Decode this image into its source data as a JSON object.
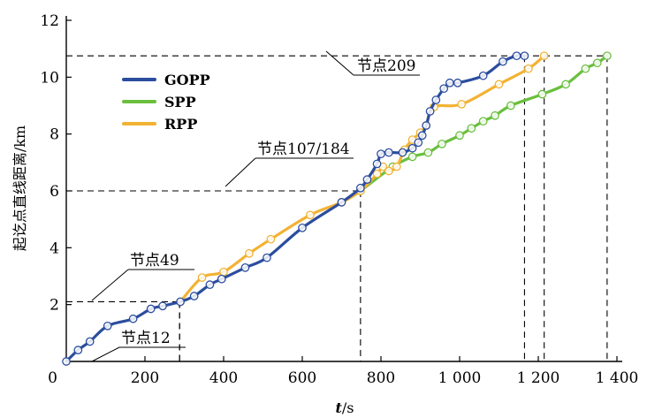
{
  "chart_data": {
    "type": "line",
    "xlabel": "t/s",
    "ylabel": "起讫点直线距离/km",
    "xlim": [
      0,
      1400
    ],
    "ylim": [
      0,
      12
    ],
    "x_ticks": [
      "0",
      "200",
      "400",
      "600",
      "800",
      "1 000",
      "1 200",
      "1 400"
    ],
    "y_ticks": [
      "0",
      "2",
      "4",
      "6",
      "8",
      "10",
      "12"
    ],
    "legend_position": "top-left",
    "grid": false,
    "series": [
      {
        "name": "GOPP",
        "color": "#2b4d9e",
        "points": [
          [
            0,
            0
          ],
          [
            30,
            0.4
          ],
          [
            60,
            0.7
          ],
          [
            105,
            1.25
          ],
          [
            170,
            1.5
          ],
          [
            215,
            1.85
          ],
          [
            245,
            1.95
          ],
          [
            290,
            2.1
          ],
          [
            325,
            2.3
          ],
          [
            365,
            2.7
          ],
          [
            395,
            2.9
          ],
          [
            455,
            3.3
          ],
          [
            510,
            3.65
          ],
          [
            600,
            4.7
          ],
          [
            700,
            5.6
          ],
          [
            748,
            6.1
          ],
          [
            765,
            6.4
          ],
          [
            790,
            6.95
          ],
          [
            800,
            7.3
          ],
          [
            820,
            7.35
          ],
          [
            855,
            7.35
          ],
          [
            880,
            7.5
          ],
          [
            895,
            7.7
          ],
          [
            905,
            7.95
          ],
          [
            915,
            8.3
          ],
          [
            925,
            8.8
          ],
          [
            940,
            9.2
          ],
          [
            960,
            9.6
          ],
          [
            975,
            9.8
          ],
          [
            995,
            9.8
          ],
          [
            1060,
            10.05
          ],
          [
            1110,
            10.55
          ],
          [
            1145,
            10.75
          ],
          [
            1165,
            10.75
          ]
        ]
      },
      {
        "name": "SPP",
        "color": "#6abf3e",
        "points": [
          [
            748,
            6.0
          ],
          [
            830,
            6.85
          ],
          [
            880,
            7.2
          ],
          [
            920,
            7.35
          ],
          [
            955,
            7.65
          ],
          [
            1000,
            7.95
          ],
          [
            1030,
            8.2
          ],
          [
            1060,
            8.45
          ],
          [
            1090,
            8.65
          ],
          [
            1130,
            9.0
          ],
          [
            1210,
            9.4
          ],
          [
            1270,
            9.75
          ],
          [
            1320,
            10.3
          ],
          [
            1350,
            10.5
          ],
          [
            1375,
            10.75
          ]
        ]
      },
      {
        "name": "RPP",
        "color": "#f2b233",
        "points": [
          [
            290,
            2.1
          ],
          [
            345,
            2.95
          ],
          [
            400,
            3.15
          ],
          [
            465,
            3.8
          ],
          [
            520,
            4.3
          ],
          [
            620,
            5.15
          ],
          [
            700,
            5.6
          ],
          [
            748,
            6.0
          ],
          [
            790,
            6.6
          ],
          [
            805,
            6.85
          ],
          [
            820,
            6.7
          ],
          [
            840,
            6.85
          ],
          [
            860,
            7.45
          ],
          [
            880,
            7.8
          ],
          [
            900,
            8.05
          ],
          [
            915,
            8.3
          ],
          [
            935,
            8.95
          ],
          [
            1005,
            9.05
          ],
          [
            1100,
            9.75
          ],
          [
            1175,
            10.3
          ],
          [
            1215,
            10.75
          ]
        ]
      }
    ],
    "reference_lines": [
      {
        "label": "节点12",
        "x": 288,
        "y": 2.1
      },
      {
        "label": "节点49",
        "x": 288,
        "y": 2.1
      },
      {
        "label": "节点107/184",
        "x": 748,
        "y": 6.0
      },
      {
        "label": "节点209",
        "x": 1165,
        "y": 10.75
      },
      {
        "x": 1215,
        "y": 10.75
      },
      {
        "x": 1375,
        "y": 10.75
      }
    ]
  }
}
